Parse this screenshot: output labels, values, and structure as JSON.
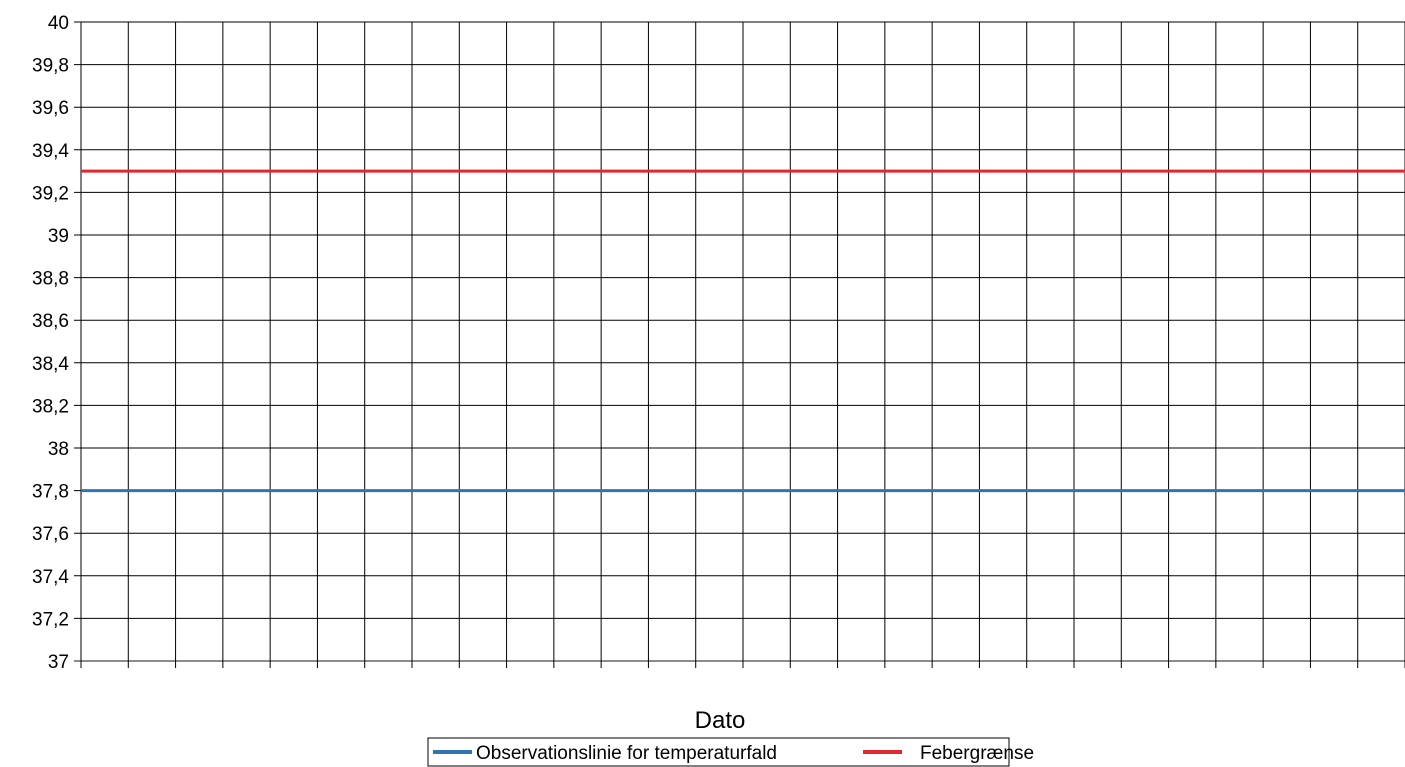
{
  "chart_data": {
    "type": "line",
    "title": "",
    "xlabel": "Dato",
    "ylabel": "",
    "ylim": [
      37,
      40
    ],
    "yticks": [
      "40",
      "39,8",
      "39,6",
      "39,4",
      "39,2",
      "39",
      "38,8",
      "38,6",
      "38,4",
      "38,2",
      "38",
      "37,8",
      "37,6",
      "37,4",
      "37,2",
      "37"
    ],
    "x_categories_count": 28,
    "grid": true,
    "legend_position": "bottom",
    "series": [
      {
        "name": "Observationslinie for temperaturfald",
        "value": 37.8,
        "color": "#2e75b6"
      },
      {
        "name": "Febergrænse",
        "value": 39.3,
        "color": "#e0282e"
      }
    ]
  }
}
